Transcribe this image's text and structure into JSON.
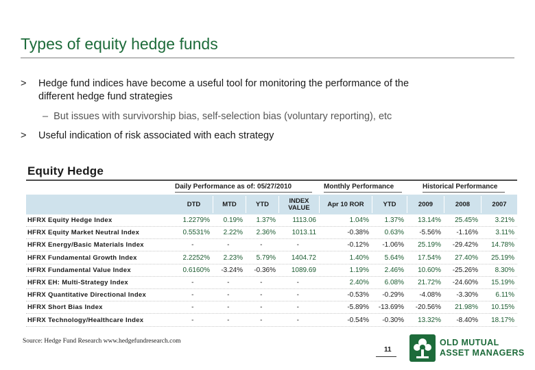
{
  "slide": {
    "title": "Types of equity hedge funds",
    "bullets": [
      {
        "mark": ">",
        "text": "Hedge fund indices have become a useful tool for monitoring the performance of the different hedge fund strategies"
      },
      {
        "mark": ">",
        "text": "Useful indication of risk associated with each strategy"
      }
    ],
    "sub_bullet": {
      "mark": "–",
      "text": "But issues with survivorship bias, self-selection bias (voluntary reporting), etc"
    }
  },
  "table": {
    "title": "Equity Hedge",
    "groups": {
      "daily": "Daily Performance as of: 05/27/2010",
      "monthly": "Monthly Performance",
      "historical": "Historical Performance"
    },
    "columns": [
      "DTD",
      "MTD",
      "YTD",
      "INDEX VALUE",
      "Apr 10 ROR",
      "YTD",
      "2009",
      "2008",
      "2007"
    ],
    "rows": [
      {
        "name": "HFRX Equity Hedge Index",
        "values": [
          "1.2279%",
          "0.19%",
          "1.37%",
          "1113.06",
          "1.04%",
          "1.37%",
          "13.14%",
          "25.45%",
          "3.21%"
        ]
      },
      {
        "name": "HFRX Equity Market Neutral Index",
        "values": [
          "0.5531%",
          "2.22%",
          "2.36%",
          "1013.11",
          "-0.38%",
          "0.63%",
          "-5.56%",
          "-1.16%",
          "3.11%"
        ]
      },
      {
        "name": "HFRX Energy/Basic Materials Index",
        "values": [
          "-",
          "-",
          "-",
          "-",
          "-0.12%",
          "-1.06%",
          "25.19%",
          "-29.42%",
          "14.78%"
        ]
      },
      {
        "name": "HFRX Fundamental Growth Index",
        "values": [
          "2.2252%",
          "2.23%",
          "5.79%",
          "1404.72",
          "1.40%",
          "5.64%",
          "17.54%",
          "27.40%",
          "25.19%"
        ]
      },
      {
        "name": "HFRX Fundamental Value Index",
        "values": [
          "0.6160%",
          "-3.24%",
          "-0.36%",
          "1089.69",
          "1.19%",
          "2.46%",
          "10.60%",
          "-25.26%",
          "8.30%"
        ]
      },
      {
        "name": "HFRX EH: Multi-Strategy Index",
        "values": [
          "-",
          "-",
          "-",
          "-",
          "2.40%",
          "6.08%",
          "21.72%",
          "-24.60%",
          "15.19%"
        ]
      },
      {
        "name": "HFRX Quantitative Directional Index",
        "values": [
          "-",
          "-",
          "-",
          "-",
          "-0.53%",
          "-0.29%",
          "-4.08%",
          "-3.30%",
          "6.11%"
        ]
      },
      {
        "name": "HFRX Short Bias Index",
        "values": [
          "-",
          "-",
          "-",
          "-",
          "-5.89%",
          "-13.69%",
          "-20.56%",
          "21.98%",
          "10.15%"
        ]
      },
      {
        "name": "HFRX Technology/Healthcare Index",
        "values": [
          "-",
          "-",
          "-",
          "-",
          "-0.54%",
          "-0.30%",
          "13.32%",
          "-8.40%",
          "18.17%"
        ]
      }
    ]
  },
  "footer": {
    "source": "Source: Hedge Fund Research www.hedgefundresearch.com",
    "page": "11",
    "logo_line1": "OLD MUTUAL",
    "logo_line2": "ASSET MANAGERS",
    "logo_icon": "old-mutual-tree-icon"
  },
  "colors": {
    "title_green": "#1d6b3a",
    "header_band": "#cfe2ec",
    "positive_text": "#1a5a2f"
  }
}
